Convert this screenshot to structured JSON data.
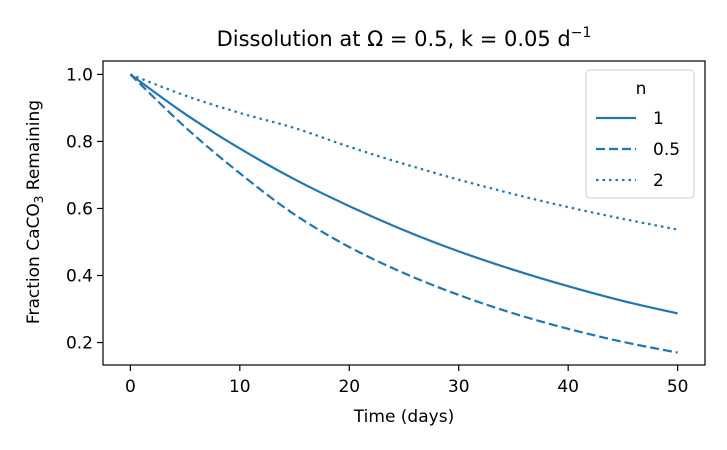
{
  "chart_data": {
    "type": "line",
    "title_prefix": "Dissolution at Ω = 0.5, k = 0.05 d",
    "title_sup": "−1",
    "xlabel": "Time (days)",
    "ylabel_prefix": "Fraction CaCO",
    "ylabel_sub": "3",
    "ylabel_suffix": " Remaining",
    "xlim": [
      -2.5,
      52.5
    ],
    "ylim": [
      0.133,
      1.04
    ],
    "xticks": [
      0,
      10,
      20,
      30,
      40,
      50
    ],
    "xtick_labels": [
      "0",
      "10",
      "20",
      "30",
      "40",
      "50"
    ],
    "yticks": [
      0.2,
      0.4,
      0.6,
      0.8,
      1.0
    ],
    "ytick_labels": [
      "0.2",
      "0.4",
      "0.6",
      "0.8",
      "1.0"
    ],
    "grid": false,
    "legend": {
      "title": "n",
      "placement": "top-right"
    },
    "color": "#1f77b4",
    "x": [
      0,
      5,
      10,
      15,
      20,
      25,
      30,
      35,
      40,
      45,
      50
    ],
    "series": [
      {
        "name": "1",
        "style": "solid",
        "values": [
          1.0,
          0.882,
          0.779,
          0.687,
          0.607,
          0.535,
          0.472,
          0.417,
          0.368,
          0.324,
          0.287
        ]
      },
      {
        "name": "0.5",
        "style": "dashed",
        "values": [
          1.0,
          0.843,
          0.705,
          0.582,
          0.485,
          0.407,
          0.342,
          0.287,
          0.241,
          0.202,
          0.17
        ]
      },
      {
        "name": "2",
        "style": "dotted",
        "values": [
          1.0,
          0.937,
          0.885,
          0.84,
          0.784,
          0.733,
          0.686,
          0.643,
          0.604,
          0.569,
          0.537
        ]
      }
    ]
  }
}
